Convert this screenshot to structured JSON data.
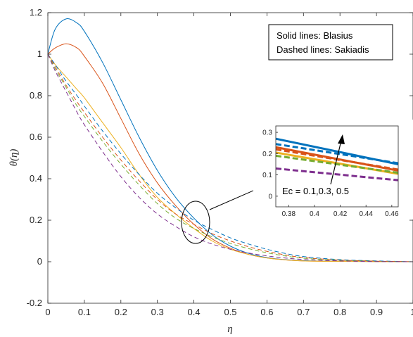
{
  "chart_data": {
    "type": "line",
    "xlabel_symbol": "η",
    "ylabel_symbol": "θ(η)",
    "xlim": [
      0,
      1
    ],
    "ylim": [
      -0.2,
      1.2
    ],
    "x_ticks": [
      "0",
      "0.1",
      "0.2",
      "0.3",
      "0.4",
      "0.5",
      "0.6",
      "0.7",
      "0.8",
      "0.9",
      "1"
    ],
    "y_ticks": [
      "-0.2",
      "0",
      "0.2",
      "0.4",
      "0.6",
      "0.8",
      "1",
      "1.2"
    ],
    "legend_lines": [
      "Solid lines: Blasius",
      "Dashed lines: Sakiadis"
    ],
    "legend_placement": "top-right",
    "annotation": "Ec = 0.1,0.3, 0.5",
    "colors": {
      "Ec=0.5": "#0072BD",
      "Ec=0.3": "#D95319",
      "Ec=0.1": "#EDB120",
      "sakiadis_mid": "#77AC30",
      "sakiadis_low": "#7E2F8E"
    },
    "x": [
      0,
      0.02,
      0.05,
      0.08,
      0.1,
      0.15,
      0.2,
      0.25,
      0.3,
      0.35,
      0.4,
      0.45,
      0.5,
      0.55,
      0.6,
      0.65,
      0.7,
      0.8,
      0.9,
      1.0
    ],
    "series": [
      {
        "style": "solid",
        "color": "#0072BD",
        "values": [
          1.0,
          1.12,
          1.17,
          1.15,
          1.11,
          0.96,
          0.78,
          0.6,
          0.44,
          0.31,
          0.21,
          0.13,
          0.075,
          0.04,
          0.02,
          0.01,
          0.005,
          0.002,
          0.001,
          0.0
        ]
      },
      {
        "style": "solid",
        "color": "#D95319",
        "values": [
          1.0,
          1.03,
          1.05,
          1.03,
          0.99,
          0.86,
          0.69,
          0.52,
          0.38,
          0.27,
          0.18,
          0.11,
          0.065,
          0.035,
          0.018,
          0.009,
          0.004,
          0.002,
          0.001,
          0.0
        ]
      },
      {
        "style": "solid",
        "color": "#EDB120",
        "values": [
          1.0,
          0.95,
          0.89,
          0.83,
          0.79,
          0.67,
          0.55,
          0.42,
          0.31,
          0.23,
          0.16,
          0.1,
          0.06,
          0.035,
          0.018,
          0.009,
          0.004,
          0.002,
          0.001,
          0.0
        ]
      },
      {
        "style": "dashed",
        "color": "#0072BD",
        "values": [
          1.0,
          0.95,
          0.87,
          0.8,
          0.75,
          0.63,
          0.52,
          0.42,
          0.33,
          0.26,
          0.2,
          0.155,
          0.115,
          0.085,
          0.06,
          0.04,
          0.025,
          0.01,
          0.004,
          0.0
        ]
      },
      {
        "style": "dashed",
        "color": "#D95319",
        "values": [
          1.0,
          0.94,
          0.85,
          0.77,
          0.72,
          0.6,
          0.49,
          0.39,
          0.3,
          0.23,
          0.18,
          0.135,
          0.1,
          0.072,
          0.05,
          0.033,
          0.02,
          0.008,
          0.003,
          0.0
        ]
      },
      {
        "style": "dashed",
        "color": "#77AC30",
        "values": [
          1.0,
          0.93,
          0.84,
          0.75,
          0.7,
          0.58,
          0.47,
          0.37,
          0.28,
          0.21,
          0.16,
          0.12,
          0.088,
          0.063,
          0.043,
          0.028,
          0.017,
          0.007,
          0.002,
          0.0
        ]
      },
      {
        "style": "dashed",
        "color": "#7E2F8E",
        "values": [
          1.0,
          0.92,
          0.82,
          0.72,
          0.66,
          0.53,
          0.41,
          0.31,
          0.23,
          0.17,
          0.12,
          0.085,
          0.06,
          0.042,
          0.028,
          0.018,
          0.011,
          0.004,
          0.001,
          0.0
        ]
      }
    ],
    "inset": {
      "xlim": [
        0.37,
        0.465
      ],
      "ylim": [
        -0.05,
        0.33
      ],
      "x_ticks": [
        "0.38",
        "0.4",
        "0.42",
        "0.44",
        "0.46"
      ],
      "y_ticks": [
        "0",
        "0.1",
        "0.2",
        "0.3"
      ],
      "x": [
        0.37,
        0.465
      ],
      "series": [
        {
          "style": "solid",
          "color": "#0072BD",
          "values": [
            0.27,
            0.15
          ]
        },
        {
          "style": "solid",
          "color": "#D95319",
          "values": [
            0.23,
            0.12
          ]
        },
        {
          "style": "solid",
          "color": "#EDB120",
          "values": [
            0.205,
            0.105
          ]
        },
        {
          "style": "dashed",
          "color": "#0072BD",
          "values": [
            0.245,
            0.155
          ]
        },
        {
          "style": "dashed",
          "color": "#D95319",
          "values": [
            0.22,
            0.125
          ]
        },
        {
          "style": "dashed",
          "color": "#77AC30",
          "values": [
            0.19,
            0.11
          ]
        },
        {
          "style": "dashed",
          "color": "#7E2F8E",
          "values": [
            0.13,
            0.075
          ]
        }
      ]
    }
  }
}
